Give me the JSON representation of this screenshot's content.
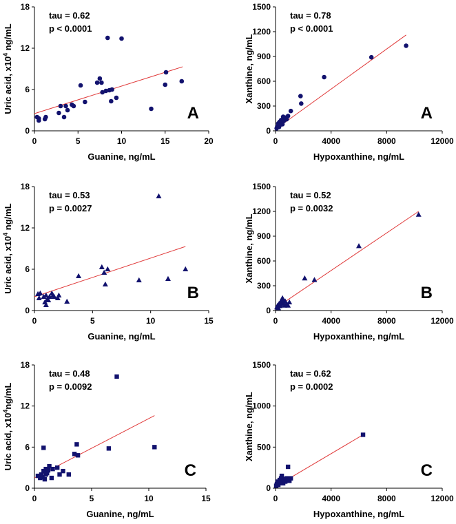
{
  "colors": {
    "marker": "#12126e",
    "fit": "#e03a3a",
    "axis": "#000000"
  },
  "chart_data": [
    {
      "id": "ua-guanine-A",
      "type": "scatter",
      "marker": "circle",
      "panel_letter": "A",
      "title": "",
      "xlabel": "Guanine, ng/mL",
      "ylabel_prefix": "Uric acid, x10",
      "ylabel_sup": "4",
      "ylabel_suffix": " ng/mL",
      "xlim": [
        0,
        20
      ],
      "ylim": [
        0,
        18
      ],
      "xticks": [
        0,
        5,
        10,
        15,
        20
      ],
      "yticks": [
        0,
        6,
        12,
        18
      ],
      "xticklabels": [
        "0",
        "5",
        "10",
        "15",
        "20"
      ],
      "yticklabels": [
        "0",
        "6",
        "12",
        "18"
      ],
      "stats": [
        "tau = 0.62",
        "p < 0.0001"
      ],
      "fit": {
        "x": [
          0,
          17
        ],
        "y": [
          2.5,
          9.3
        ]
      },
      "points": [
        [
          0.3,
          2.0
        ],
        [
          0.5,
          1.5
        ],
        [
          0.5,
          1.8
        ],
        [
          1.2,
          1.7
        ],
        [
          1.3,
          2.0
        ],
        [
          2.8,
          2.6
        ],
        [
          3.0,
          3.6
        ],
        [
          3.4,
          2.0
        ],
        [
          3.6,
          3.6
        ],
        [
          3.8,
          3.0
        ],
        [
          4.3,
          3.8
        ],
        [
          4.5,
          3.6
        ],
        [
          5.3,
          6.6
        ],
        [
          5.8,
          4.2
        ],
        [
          7.2,
          7.0
        ],
        [
          7.5,
          7.6
        ],
        [
          7.7,
          7.0
        ],
        [
          7.8,
          5.6
        ],
        [
          8.2,
          5.8
        ],
        [
          8.4,
          13.5
        ],
        [
          8.6,
          5.9
        ],
        [
          8.8,
          4.3
        ],
        [
          8.9,
          6.0
        ],
        [
          9.4,
          4.8
        ],
        [
          10.0,
          13.4
        ],
        [
          13.4,
          3.2
        ],
        [
          15.0,
          6.7
        ],
        [
          15.1,
          8.5
        ],
        [
          16.9,
          7.2
        ]
      ]
    },
    {
      "id": "xan-hypox-A",
      "type": "scatter",
      "marker": "circle",
      "panel_letter": "A",
      "title": "",
      "xlabel": "Hypoxanthine, ng/mL",
      "ylabel_prefix": "Xanthine, ng/mL",
      "ylabel_sup": "",
      "ylabel_suffix": "",
      "xlim": [
        0,
        12000
      ],
      "ylim": [
        0,
        1500
      ],
      "xticks": [
        0,
        4000,
        8000,
        12000
      ],
      "yticks": [
        0,
        300,
        600,
        900,
        1200,
        1500
      ],
      "xticklabels": [
        "0",
        "4000",
        "8000",
        "12000"
      ],
      "yticklabels": [
        "0",
        "300",
        "600",
        "900",
        "1200",
        "1500"
      ],
      "stats": [
        "tau = 0.78",
        "p < 0.0001"
      ],
      "fit": {
        "x": [
          0,
          9400
        ],
        "y": [
          20,
          1160
        ]
      },
      "points": [
        [
          80,
          30
        ],
        [
          120,
          50
        ],
        [
          180,
          60
        ],
        [
          200,
          90
        ],
        [
          250,
          45
        ],
        [
          300,
          110
        ],
        [
          350,
          75
        ],
        [
          400,
          130
        ],
        [
          450,
          100
        ],
        [
          500,
          80
        ],
        [
          550,
          170
        ],
        [
          600,
          120
        ],
        [
          700,
          160
        ],
        [
          800,
          140
        ],
        [
          900,
          180
        ],
        [
          1100,
          240
        ],
        [
          1800,
          420
        ],
        [
          1850,
          330
        ],
        [
          3500,
          650
        ],
        [
          6900,
          890
        ],
        [
          9400,
          1030
        ]
      ]
    },
    {
      "id": "ua-guanine-B",
      "type": "scatter",
      "marker": "triangle",
      "panel_letter": "B",
      "title": "",
      "xlabel": "Guanine, ng/mL",
      "ylabel_prefix": "Uric acid, x10",
      "ylabel_sup": "4",
      "ylabel_suffix": " ng/mL",
      "xlim": [
        0,
        15
      ],
      "ylim": [
        0,
        18
      ],
      "xticks": [
        0,
        5,
        10,
        15
      ],
      "yticks": [
        0,
        6,
        12,
        18
      ],
      "xticklabels": [
        "0",
        "5",
        "10",
        "15"
      ],
      "yticklabels": [
        "0",
        "6",
        "12",
        "18"
      ],
      "stats": [
        "tau = 0.53",
        "p = 0.0027"
      ],
      "fit": {
        "x": [
          0,
          13
        ],
        "y": [
          2.0,
          9.3
        ]
      },
      "points": [
        [
          0.3,
          2.4
        ],
        [
          0.4,
          1.8
        ],
        [
          0.5,
          2.5
        ],
        [
          0.8,
          2.0
        ],
        [
          0.9,
          1.2
        ],
        [
          1.0,
          2.2
        ],
        [
          1.0,
          0.8
        ],
        [
          1.1,
          1.6
        ],
        [
          1.2,
          1.5
        ],
        [
          1.3,
          2.0
        ],
        [
          1.5,
          2.5
        ],
        [
          1.6,
          2.2
        ],
        [
          1.7,
          2.0
        ],
        [
          2.0,
          1.8
        ],
        [
          2.1,
          2.2
        ],
        [
          2.8,
          1.3
        ],
        [
          3.8,
          5.0
        ],
        [
          5.8,
          6.3
        ],
        [
          6.1,
          3.8
        ],
        [
          6.0,
          5.5
        ],
        [
          6.3,
          6.0
        ],
        [
          9.0,
          4.4
        ],
        [
          10.7,
          16.6
        ],
        [
          11.5,
          4.6
        ],
        [
          13.0,
          6.0
        ]
      ]
    },
    {
      "id": "xan-hypox-B",
      "type": "scatter",
      "marker": "triangle",
      "panel_letter": "B",
      "title": "",
      "xlabel": "Hypoxanthine, ng/mL",
      "ylabel_prefix": "Xanthine, ng/mL",
      "ylabel_sup": "",
      "ylabel_suffix": "",
      "xlim": [
        0,
        12000
      ],
      "ylim": [
        0,
        1500
      ],
      "xticks": [
        0,
        4000,
        8000,
        12000
      ],
      "yticks": [
        0,
        300,
        600,
        900,
        1200,
        1500
      ],
      "xticklabels": [
        "0",
        "4000",
        "8000",
        "12000"
      ],
      "yticklabels": [
        "0",
        "300",
        "600",
        "900",
        "1200",
        "1500"
      ],
      "stats": [
        "tau = 0.52",
        "p = 0.0032"
      ],
      "fit": {
        "x": [
          0,
          10300
        ],
        "y": [
          30,
          1200
        ]
      },
      "points": [
        [
          100,
          40
        ],
        [
          150,
          60
        ],
        [
          200,
          30
        ],
        [
          250,
          80
        ],
        [
          300,
          55
        ],
        [
          350,
          100
        ],
        [
          400,
          70
        ],
        [
          450,
          130
        ],
        [
          500,
          150
        ],
        [
          550,
          90
        ],
        [
          600,
          120
        ],
        [
          650,
          60
        ],
        [
          700,
          110
        ],
        [
          800,
          80
        ],
        [
          900,
          60
        ],
        [
          1000,
          100
        ],
        [
          2100,
          390
        ],
        [
          2800,
          370
        ],
        [
          6000,
          780
        ],
        [
          10300,
          1160
        ]
      ]
    },
    {
      "id": "ua-guanine-C",
      "type": "scatter",
      "marker": "square",
      "panel_letter": "C",
      "title": "",
      "xlabel": "Guanine, ng/mL",
      "ylabel_prefix": "Uric acid, x10",
      "ylabel_sup": "4",
      "ylabel_suffix": "ng/mL",
      "xlim": [
        0,
        15
      ],
      "ylim": [
        0,
        18
      ],
      "xticks": [
        0,
        5,
        10,
        15
      ],
      "yticks": [
        0,
        6,
        12,
        18
      ],
      "xticklabels": [
        "0",
        "5",
        "10",
        "15"
      ],
      "yticklabels": [
        "0",
        "6",
        "12",
        "18"
      ],
      "stats": [
        "tau = 0.48",
        "p = 0.0092"
      ],
      "fit": {
        "x": [
          0,
          10.5
        ],
        "y": [
          1.5,
          10.6
        ]
      },
      "points": [
        [
          0.3,
          1.8
        ],
        [
          0.5,
          1.5
        ],
        [
          0.6,
          2.0
        ],
        [
          0.7,
          1.6
        ],
        [
          0.8,
          2.5
        ],
        [
          0.8,
          5.9
        ],
        [
          0.9,
          1.3
        ],
        [
          1.0,
          2.0
        ],
        [
          1.0,
          2.8
        ],
        [
          1.1,
          2.2
        ],
        [
          1.2,
          2.6
        ],
        [
          1.3,
          3.2
        ],
        [
          1.5,
          1.5
        ],
        [
          1.6,
          2.8
        ],
        [
          2.0,
          3.0
        ],
        [
          2.2,
          2.0
        ],
        [
          2.5,
          2.5
        ],
        [
          3.0,
          2.0
        ],
        [
          3.5,
          5.0
        ],
        [
          3.7,
          6.4
        ],
        [
          3.8,
          4.8
        ],
        [
          6.5,
          5.8
        ],
        [
          7.2,
          16.3
        ],
        [
          10.5,
          6.0
        ]
      ]
    },
    {
      "id": "xan-hypox-C",
      "type": "scatter",
      "marker": "square",
      "panel_letter": "C",
      "title": "",
      "xlabel": "Hypoxanthine, ng/mL",
      "ylabel_prefix": "Xanthine, ng/mL",
      "ylabel_sup": "",
      "ylabel_suffix": "",
      "xlim": [
        0,
        12000
      ],
      "ylim": [
        0,
        1500
      ],
      "xticks": [
        0,
        4000,
        8000,
        12000
      ],
      "yticks": [
        0,
        500,
        1000,
        1500
      ],
      "xticklabels": [
        "0",
        "4000",
        "8000",
        "12000"
      ],
      "yticklabels": [
        "0",
        "500",
        "1000",
        "1500"
      ],
      "stats": [
        "tau = 0.62",
        "p = 0.0002"
      ],
      "fit": {
        "x": [
          0,
          6300
        ],
        "y": [
          20,
          650
        ]
      },
      "points": [
        [
          50,
          30
        ],
        [
          100,
          50
        ],
        [
          150,
          80
        ],
        [
          200,
          40
        ],
        [
          250,
          60
        ],
        [
          300,
          100
        ],
        [
          350,
          70
        ],
        [
          400,
          120
        ],
        [
          450,
          150
        ],
        [
          500,
          90
        ],
        [
          550,
          60
        ],
        [
          600,
          110
        ],
        [
          700,
          80
        ],
        [
          800,
          120
        ],
        [
          900,
          260
        ],
        [
          1000,
          90
        ],
        [
          1100,
          120
        ],
        [
          6300,
          650
        ]
      ]
    }
  ]
}
